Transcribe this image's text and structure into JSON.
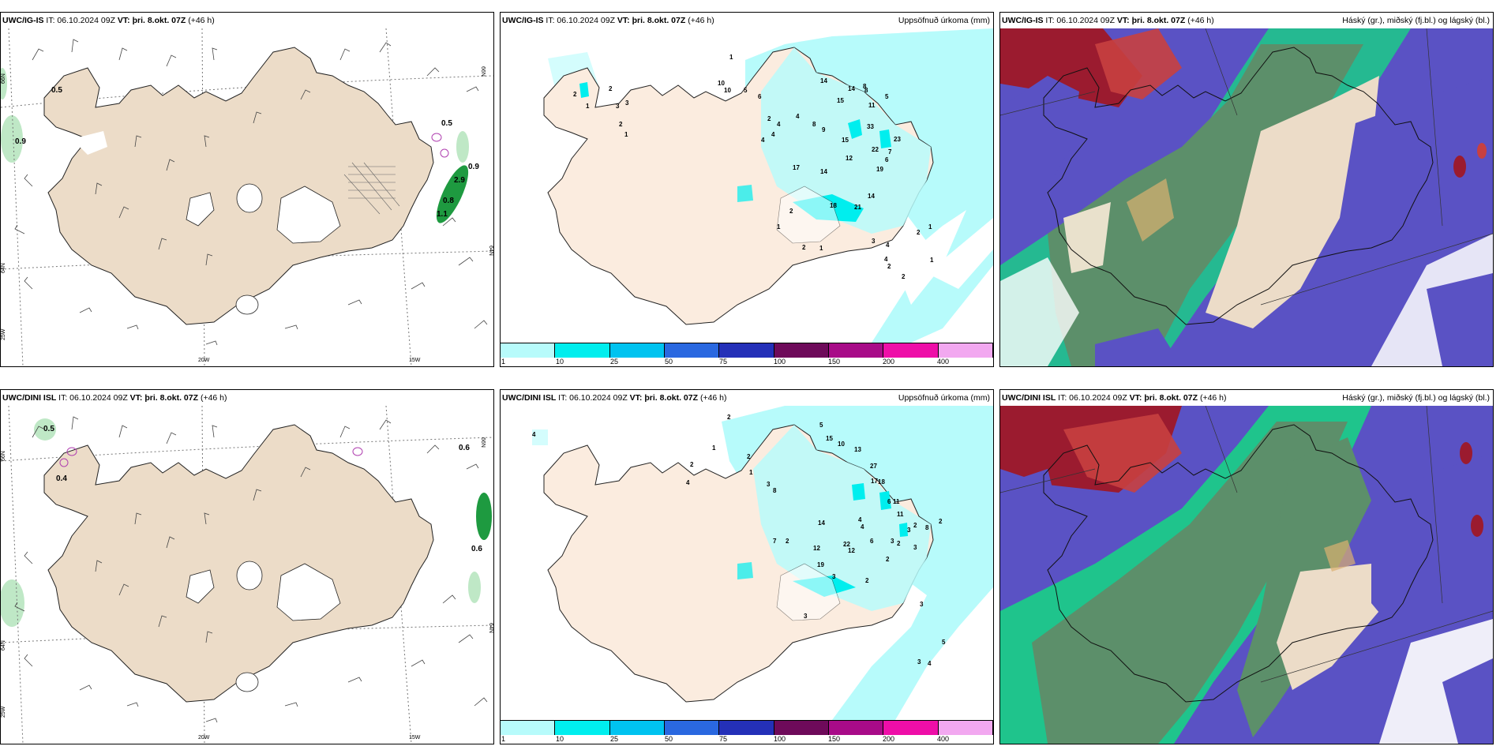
{
  "panels": [
    {
      "id": "wind-ig",
      "model": "UWC/IG-IS",
      "it": "IT: 06.10.2024 09Z",
      "vt": "VT: þri. 8.okt. 07Z",
      "lead": "(+46 h)",
      "right_title": "",
      "values": [
        "0.5",
        "0.9",
        "0.5",
        "0.9",
        "2.9",
        "0.8",
        "1.1"
      ],
      "grid_labels": [
        "66N",
        "64N",
        "25W",
        "20W",
        "15W",
        "66N",
        "64N"
      ]
    },
    {
      "id": "precip-ig",
      "model": "UWC/IG-IS",
      "it": "IT: 06.10.2024 09Z",
      "vt": "VT: þri. 8.okt. 07Z",
      "lead": "(+46 h)",
      "right_title": "Uppsöfnuð úrkoma (mm)",
      "values": [
        "2",
        "1",
        "2",
        "3",
        "3",
        "2",
        "1",
        "1",
        "10",
        "10",
        "5",
        "6",
        "2",
        "4",
        "4",
        "4",
        "14",
        "15",
        "14",
        "8",
        "11",
        "8",
        "5",
        "4",
        "8",
        "9",
        "15",
        "33",
        "23",
        "22",
        "19",
        "6",
        "7",
        "17",
        "14",
        "12",
        "18",
        "21",
        "14",
        "2",
        "1",
        "1",
        "2",
        "3",
        "4",
        "4",
        "2",
        "2",
        "1",
        "1",
        "2"
      ]
    },
    {
      "id": "cloud-ig",
      "model": "UWC/IG-IS",
      "it": "IT: 06.10.2024 09Z",
      "vt": "VT: þri. 8.okt. 07Z",
      "lead": "(+46 h)",
      "right_title": "Háský (gr.), miðský (fj.bl.) og lágský (bl.)"
    },
    {
      "id": "wind-dini",
      "model": "UWC/DINI ISL",
      "it": "IT: 06.10.2024 09Z",
      "vt": "VT: þri. 8.okt. 07Z",
      "lead": "(+46 h)",
      "right_title": "",
      "values": [
        "0.5",
        "0.4",
        "0.6",
        "0.6"
      ],
      "grid_labels": [
        "66N",
        "64N",
        "25W",
        "20W",
        "15W",
        "66N",
        "64N"
      ]
    },
    {
      "id": "precip-dini",
      "model": "UWC/DINI ISL",
      "it": "IT: 06.10.2024 09Z",
      "vt": "VT: þri. 8.okt. 07Z",
      "lead": "(+46 h)",
      "right_title": "Uppsöfnuð úrkoma (mm)",
      "values": [
        "4",
        "2",
        "1",
        "2",
        "4",
        "2",
        "1",
        "3",
        "8",
        "5",
        "15",
        "10",
        "13",
        "27",
        "17",
        "18",
        "6",
        "11",
        "11",
        "8",
        "2",
        "2",
        "3",
        "3",
        "4",
        "4",
        "6",
        "12",
        "14",
        "7",
        "2",
        "12",
        "19",
        "22",
        "2",
        "2",
        "3",
        "2",
        "3",
        "3",
        "3",
        "5",
        "3",
        "4"
      ]
    },
    {
      "id": "cloud-dini",
      "model": "UWC/DINI ISL",
      "it": "IT: 06.10.2024 09Z",
      "vt": "VT: þri. 8.okt. 07Z",
      "lead": "(+46 h)",
      "right_title": "Háský (gr.), miðský (fj.bl.) og lágský (bl.)"
    }
  ],
  "colorbar": {
    "labels": [
      "1",
      "10",
      "25",
      "50",
      "75",
      "100",
      "150",
      "200",
      "400"
    ],
    "colors": [
      "#b7fbfb",
      "#00eeee",
      "#00c3f0",
      "#2a68e0",
      "#2430b8",
      "#6e0a5a",
      "#a80b88",
      "#ee0ea8",
      "#f2a8f0"
    ]
  },
  "colors": {
    "land": "#ecdcc8",
    "precip_land": "#fbecdf",
    "glacier": "#ffffff",
    "wind_sea": "#ffffff",
    "green_light": "#bfe8c6",
    "green_dark": "#1e9a40",
    "high_cloud": "#5c8f6a",
    "mid_cloud": "#5a52c4",
    "low_cloud": "#1fc48c",
    "red": "#9b1b2f",
    "precip_light": "#b7fbfb",
    "precip_mid": "#00eeee"
  }
}
